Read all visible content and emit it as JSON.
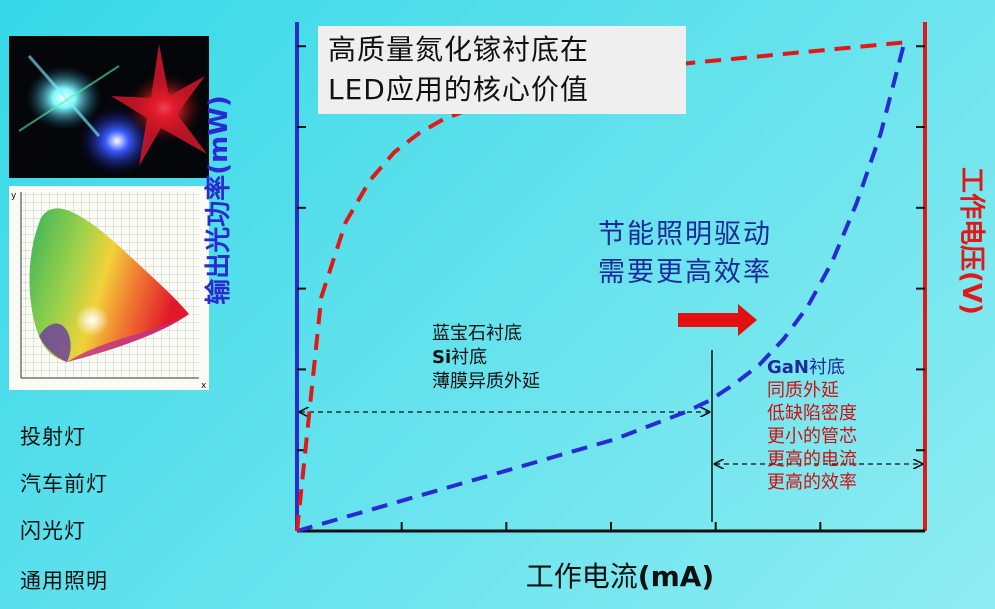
{
  "applications": [
    "投射灯",
    "汽车前灯",
    "闪光灯",
    "通用照明"
  ],
  "chart_data": {
    "type": "line",
    "title": "高质量氮化镓衬底在LED应用的核心价值",
    "title_lines": [
      "高质量氮化镓衬底在",
      "LED应用的核心价值"
    ],
    "xlabel": "工作电流(mA)",
    "xlabel_main": "工作电流",
    "xlabel_unit": "(mA)",
    "ylabel_left": "输出光功率(mW)",
    "ylabel_right": "工作电压(V)",
    "x": [
      0,
      1,
      2,
      3,
      4,
      5,
      6,
      7,
      8,
      9,
      10,
      11,
      12,
      13,
      14,
      15,
      16,
      17,
      18,
      19,
      20,
      21,
      22,
      23,
      24,
      25
    ],
    "series": [
      {
        "name": "输出光功率",
        "color": "#2a2ad0",
        "axis": "left",
        "values": [
          0,
          0.3,
          0.6,
          0.9,
          1.2,
          1.5,
          1.8,
          2.1,
          2.4,
          2.7,
          3.0,
          3.3,
          3.6,
          3.9,
          4.3,
          4.7,
          5.1,
          5.6,
          6.3,
          7.1,
          8.2,
          9.6,
          11.5,
          14.0,
          17.0,
          21.0
        ]
      },
      {
        "name": "工作电压",
        "color": "#e01818",
        "axis": "right",
        "values": [
          0,
          10.0,
          13.2,
          15.0,
          16.2,
          17.0,
          17.6,
          18.0,
          18.4,
          18.7,
          19.0,
          19.2,
          19.4,
          19.6,
          19.8,
          19.9,
          20.0,
          20.1,
          20.2,
          20.3,
          20.4,
          20.5,
          20.6,
          20.7,
          20.8,
          20.9
        ]
      }
    ],
    "xlim": [
      0,
      25
    ],
    "ylim": [
      0,
      21
    ],
    "grid": false,
    "annotations": {
      "slogan": [
        "节能照明驱动",
        "需要更高效率"
      ],
      "substrate_left": [
        "蓝宝石衬底",
        "Si衬底",
        "薄膜异质外延"
      ],
      "substrate_left_si": "Si",
      "substrate_left_si_suffix": "衬底",
      "gan_label": "GaN",
      "gan_suffix": "衬底",
      "gan_points": [
        "同质外延",
        "低缺陷密度",
        "更小的管芯",
        "更高的电流",
        "更高的效率"
      ]
    }
  }
}
